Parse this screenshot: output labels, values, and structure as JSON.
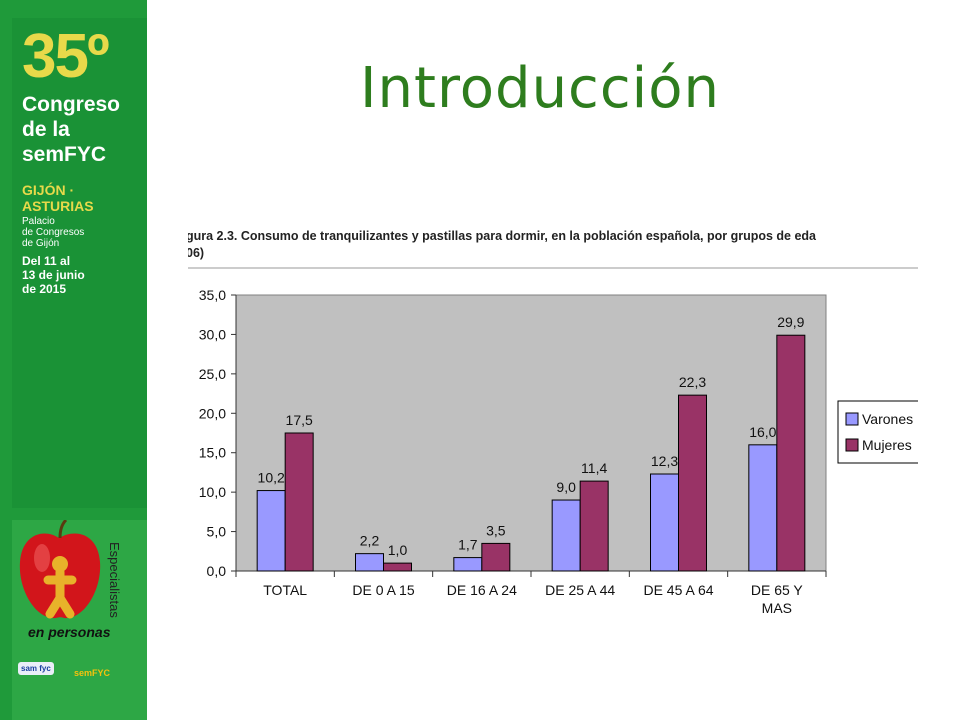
{
  "sidebar": {
    "edition": "35º",
    "title_lines": [
      "Congreso",
      "de la",
      "semFYC"
    ],
    "city_lines": [
      "GIJÓN ·",
      "ASTURIAS"
    ],
    "venue_lines": [
      "Palacio",
      "de Congresos",
      "de Gijón"
    ],
    "dates_lines": [
      "Del 11 al",
      "13 de junio",
      "de 2015"
    ],
    "slogan_side": "Especialistas",
    "slogan": "en personas",
    "logo_left": "sam fyc",
    "logo_right": "semFYC"
  },
  "slide": {
    "title": "Introducción"
  },
  "colors": {
    "varones": "#9999ff",
    "mujeres": "#993366",
    "plot_bg": "#c0c0c0",
    "title_green": "#2e7d1e"
  },
  "chart_data": {
    "type": "bar",
    "title_lines": [
      "gura 2.3. Consumo de tranquilizantes y pastillas para dormir, en la población española, por grupos de eda",
      "06)"
    ],
    "categories": [
      [
        "TOTAL"
      ],
      [
        "DE 0 A 15"
      ],
      [
        "DE 16 A 24"
      ],
      [
        "DE 25 A 44"
      ],
      [
        "DE 45 A 64"
      ],
      [
        "DE 65 Y",
        "MAS"
      ]
    ],
    "series": [
      {
        "name": "Varones",
        "values": [
          10.2,
          2.2,
          1.7,
          9.0,
          12.3,
          16.0
        ],
        "labels": [
          "10,2",
          "2,2",
          "1,7",
          "9,0",
          "12,3",
          "16,0"
        ]
      },
      {
        "name": "Mujeres",
        "values": [
          17.5,
          1.0,
          3.5,
          11.4,
          22.3,
          29.9
        ],
        "labels": [
          "17,5",
          "1,0",
          "3,5",
          "11,4",
          "22,3",
          "29,9"
        ]
      }
    ],
    "y_ticks": [
      0,
      5,
      10,
      15,
      20,
      25,
      30,
      35
    ],
    "y_tick_labels": [
      "0,0",
      "5,0",
      "10,0",
      "15,0",
      "20,0",
      "25,0",
      "30,0",
      "35,0"
    ],
    "ylim": [
      0,
      35
    ],
    "legend_position": "right",
    "grid": false
  }
}
